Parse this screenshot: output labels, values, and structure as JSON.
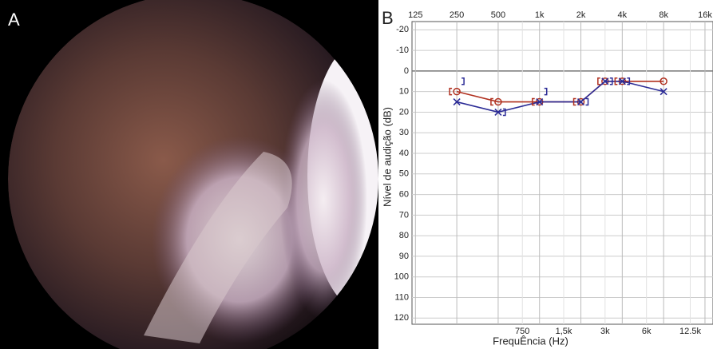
{
  "panels": [
    "A",
    "B"
  ],
  "chart_data": {
    "type": "audiogram",
    "xlabel": "FrequÊncia (Hz)",
    "ylabel": "Nível de audição (dB)",
    "xscale": "log",
    "xlim": [
      118,
      18300
    ],
    "ylim": [
      -24,
      123
    ],
    "y_inverted": true,
    "grid": true,
    "xticks_top": [
      125,
      250,
      500,
      {
        "value": 1000,
        "label": "1k"
      },
      {
        "value": 2000,
        "label": "2k"
      },
      {
        "value": 4000,
        "label": "4k"
      },
      {
        "value": 8000,
        "label": "8k"
      },
      {
        "value": 16000,
        "label": "16k"
      }
    ],
    "xticks_bottom": [
      750,
      {
        "value": 1500,
        "label": "1,5k"
      },
      {
        "value": 3000,
        "label": "3k"
      },
      {
        "value": 6000,
        "label": "6k"
      },
      {
        "value": 12500,
        "label": "12.5k"
      }
    ],
    "yticks": [
      -20,
      -10,
      0,
      10,
      20,
      30,
      40,
      50,
      60,
      70,
      80,
      90,
      100,
      110,
      120
    ],
    "series": [
      {
        "marker": "o",
        "color": "#b0301f",
        "line": true,
        "x": [
          250,
          500,
          1000,
          2000,
          3000,
          4000,
          8000
        ],
        "values": [
          10,
          15,
          15,
          15,
          5,
          5,
          5
        ]
      },
      {
        "marker": "x",
        "color": "#2b2b96",
        "line": true,
        "x": [
          250,
          500,
          1000,
          2000,
          3000,
          4000,
          8000
        ],
        "values": [
          15,
          20,
          15,
          15,
          5,
          5,
          10
        ]
      },
      {
        "marker": "[",
        "color": "#b0301f",
        "line": false,
        "x": [
          250,
          500,
          1000,
          2000,
          3000,
          4000
        ],
        "values": [
          10,
          15,
          15,
          15,
          5,
          5
        ]
      },
      {
        "marker": "]",
        "color": "#2b2b96",
        "line": false,
        "x": [
          250,
          500,
          1000,
          2000,
          3000,
          4000
        ],
        "values": [
          5,
          20,
          10,
          15,
          5,
          5
        ]
      }
    ]
  }
}
